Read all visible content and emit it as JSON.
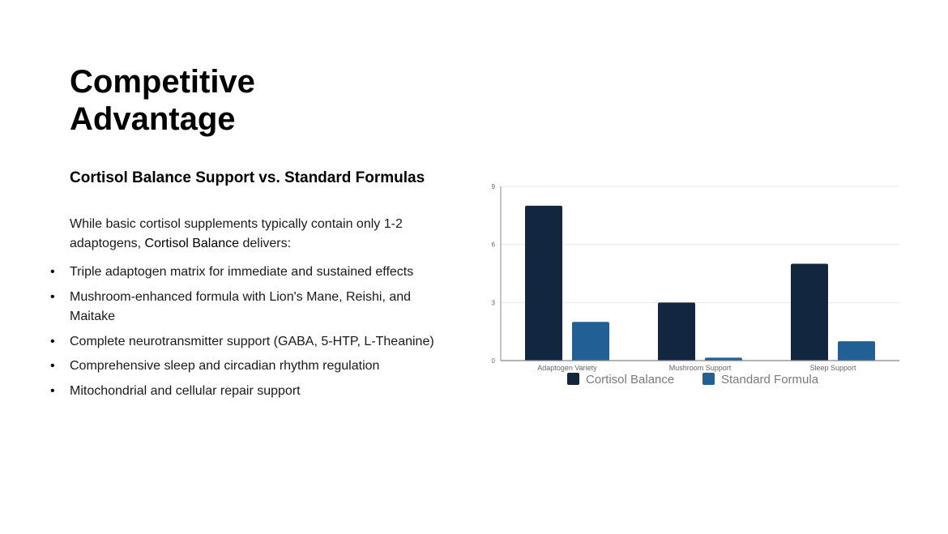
{
  "slide": {
    "title_line1": "Competitive",
    "title_line2": "Advantage",
    "subtitle": "Cortisol Balance Support vs. Standard Formulas",
    "intro_before": "While basic cortisol supplements typically contain only 1-2 adaptogens, ",
    "intro_brand": "Cortisol Balance",
    "intro_after": " delivers:",
    "bullets": [
      "Triple adaptogen matrix for immediate and sustained effects",
      "Mushroom-enhanced formula with Lion's Mane, Reishi, and Maitake",
      "Complete neurotransmitter support (GABA, 5-HTP, L-Theanine)",
      "Comprehensive sleep and circadian rhythm regulation",
      "Mitochondrial and cellular repair support"
    ]
  },
  "colors": {
    "cortisol": "#12263f",
    "standard": "#215f95",
    "grid": "#e8e8e8",
    "axis": "#888888",
    "tick_text": "#666666",
    "legend_text": "#7a7a7a"
  },
  "chart_data": {
    "type": "bar",
    "categories": [
      "Adaptogen Variety",
      "Mushroom Support",
      "Sleep Support"
    ],
    "series": [
      {
        "name": "Cortisol Balance",
        "values": [
          8,
          3,
          5
        ]
      },
      {
        "name": "Standard Formula",
        "values": [
          2,
          0.15,
          1
        ]
      }
    ],
    "yticks": [
      0,
      3,
      6,
      9
    ],
    "ylim": [
      0,
      9
    ],
    "grid": true,
    "legend_position": "bottom"
  }
}
